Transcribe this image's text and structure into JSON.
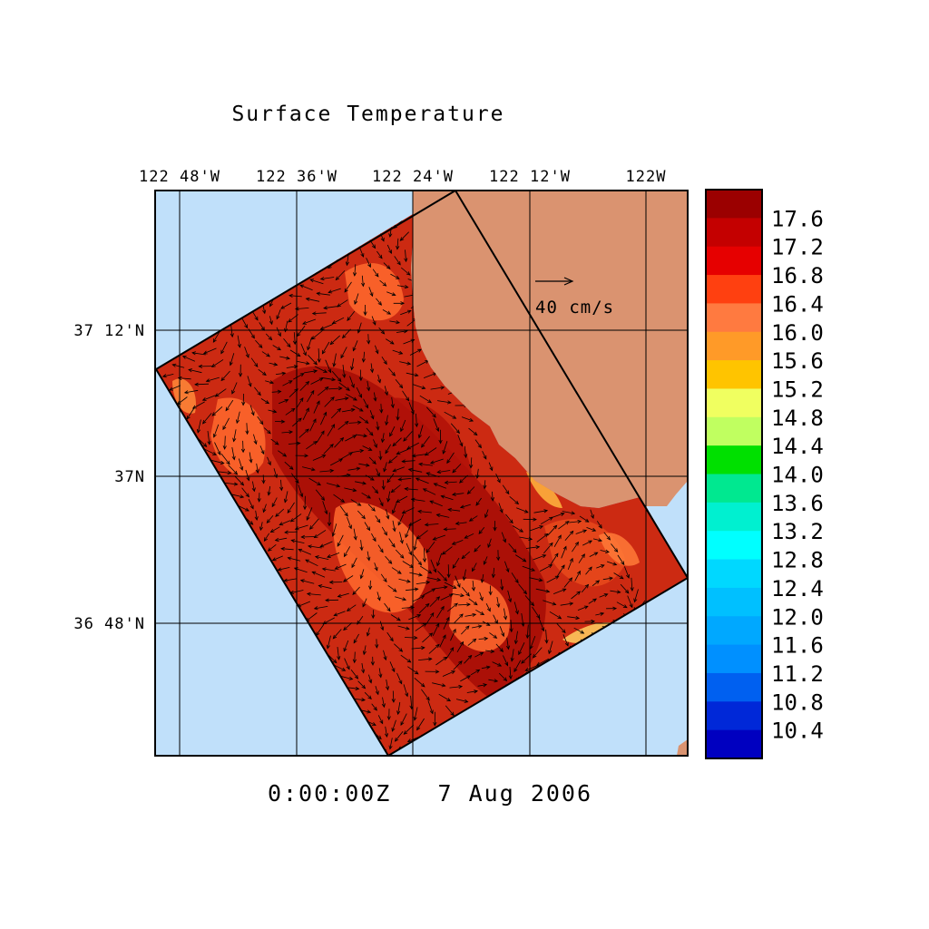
{
  "title": "Surface Temperature",
  "timestamp": "0:00:00Z   7 Aug 2006",
  "lon_labels": [
    "122 48'W",
    "122 36'W",
    "122 24'W",
    "122 12'W",
    "122W"
  ],
  "lat_labels": [
    "37 12'N",
    "37N",
    "36 48'N"
  ],
  "scale_arrow_label": "40 cm/s",
  "colorbar": {
    "labels": [
      "17.6",
      "17.2",
      "16.8",
      "16.4",
      "16.0",
      "15.6",
      "15.2",
      "14.8",
      "14.4",
      "14.0",
      "13.6",
      "13.2",
      "12.8",
      "12.4",
      "12.0",
      "11.6",
      "11.2",
      "10.8",
      "10.4"
    ],
    "colors": [
      "#9b0000",
      "#c40000",
      "#e60000",
      "#ff4010",
      "#ff7a40",
      "#ff9a28",
      "#ffc400",
      "#f0ff60",
      "#c0ff60",
      "#00e000",
      "#00e890",
      "#00f0d0",
      "#00ffff",
      "#00d8ff",
      "#00c0ff",
      "#00a8ff",
      "#0090ff",
      "#0060f0",
      "#0028d8",
      "#0000c0"
    ]
  },
  "colors": {
    "ocean": "#c0e0fa",
    "land": "#da9370",
    "field_base": "#cc2a12"
  }
}
